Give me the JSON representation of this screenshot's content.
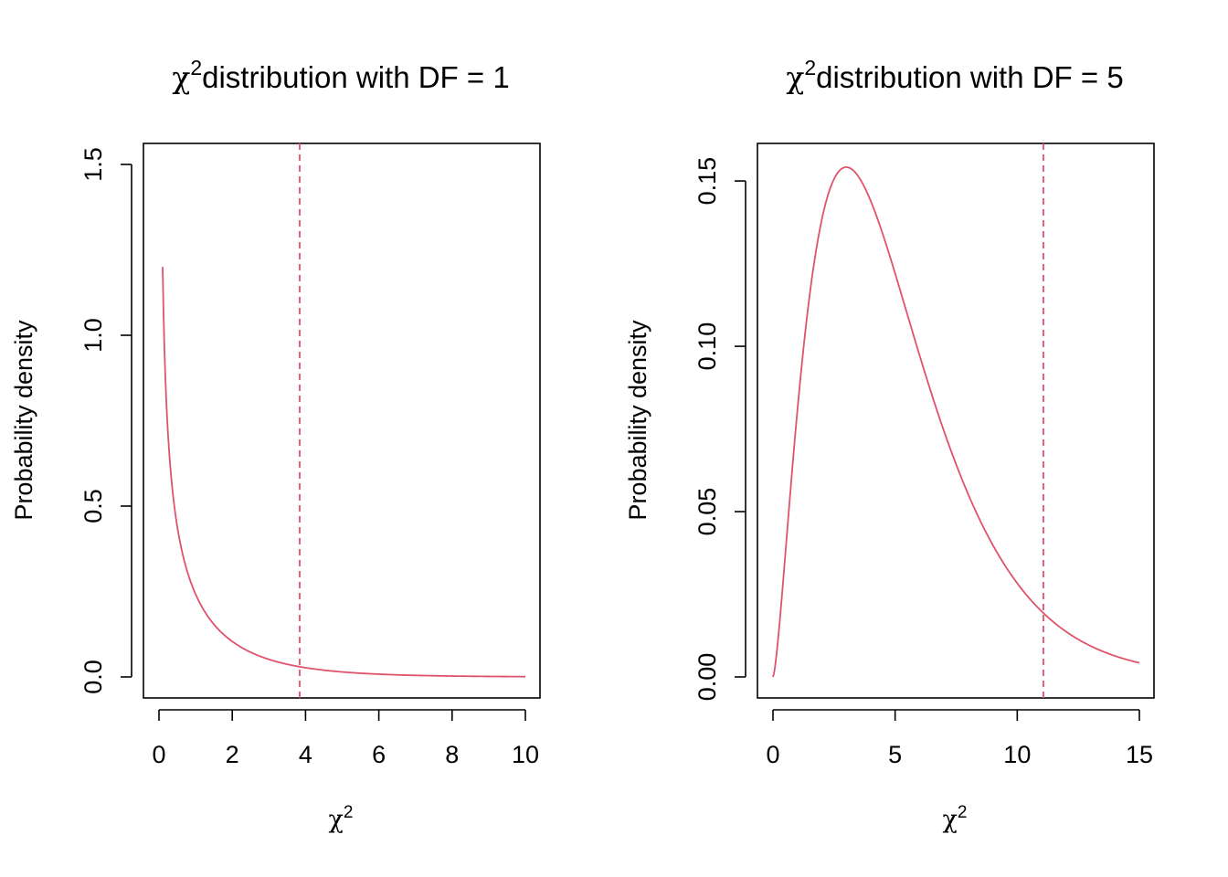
{
  "chart_data": [
    {
      "type": "line",
      "title_symbol": "χ",
      "title_superscript": "2",
      "title_text": "distribution with DF = 1",
      "xlabel_symbol": "χ",
      "xlabel_superscript": "2",
      "ylabel": "Probability density",
      "xlim": [
        0,
        10
      ],
      "ylim": [
        0,
        1.5
      ],
      "xticks": [
        0,
        2,
        4,
        6,
        8,
        10
      ],
      "xtick_labels": [
        "0",
        "2",
        "4",
        "6",
        "8",
        "10"
      ],
      "yticks": [
        0,
        0.5,
        1,
        1.5
      ],
      "ytick_labels": [
        "0.0",
        "0.5",
        "1.0",
        "1.5"
      ],
      "df": 1,
      "x_start": 0.1,
      "x_end": 10,
      "critical_value": 3.84,
      "line_color": "#DF536B",
      "series": [
        {
          "name": "density",
          "distribution": "chi-squared",
          "df": 1
        }
      ]
    },
    {
      "type": "line",
      "title_symbol": "χ",
      "title_superscript": "2",
      "title_text": "distribution with DF = 5",
      "xlabel_symbol": "χ",
      "xlabel_superscript": "2",
      "ylabel": "Probability density",
      "xlim": [
        0,
        15
      ],
      "ylim": [
        0,
        0.155
      ],
      "xticks": [
        0,
        5,
        10,
        15
      ],
      "xtick_labels": [
        "0",
        "5",
        "10",
        "15"
      ],
      "yticks": [
        0,
        0.05,
        0.1,
        0.15
      ],
      "ytick_labels": [
        "0.00",
        "0.05",
        "0.10",
        "0.15"
      ],
      "df": 5,
      "x_start": 0,
      "x_end": 15,
      "critical_value": 11.07,
      "line_color": "#DF536B",
      "series": [
        {
          "name": "density",
          "distribution": "chi-squared",
          "df": 5
        }
      ]
    }
  ]
}
